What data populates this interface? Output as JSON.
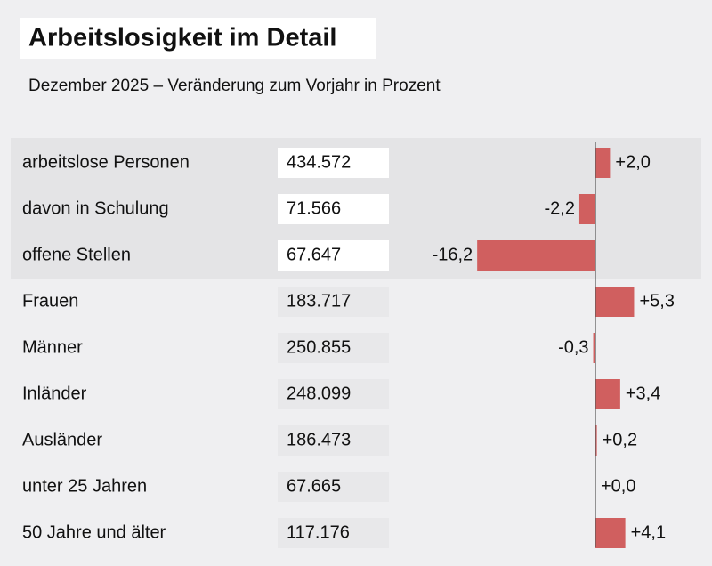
{
  "chart_data": {
    "type": "bar",
    "title": "Arbeitslosigkeit im Detail",
    "subtitle": "Dezember 2025 – Veränderung zum Vorjahr in Prozent",
    "categories": [
      "arbeitslose Personen",
      "davon in Schulung",
      "offene Stellen",
      "Frauen",
      "Männer",
      "Inländer",
      "Ausländer",
      "unter 25 Jahren",
      "50 Jahre und älter"
    ],
    "counts": [
      "434.572",
      "71.566",
      "67.647",
      "183.717",
      "250.855",
      "248.099",
      "186.473",
      "67.665",
      "117.176"
    ],
    "values": [
      2.0,
      -2.2,
      -16.2,
      5.3,
      -0.3,
      3.4,
      0.2,
      0.0,
      4.1
    ],
    "value_labels": [
      "+2,0",
      "-2,2",
      "-16,2",
      "+5,3",
      "-0,3",
      "+3,4",
      "+0,2",
      "+0,0",
      "+4,1"
    ],
    "color": "#d05f5f"
  }
}
